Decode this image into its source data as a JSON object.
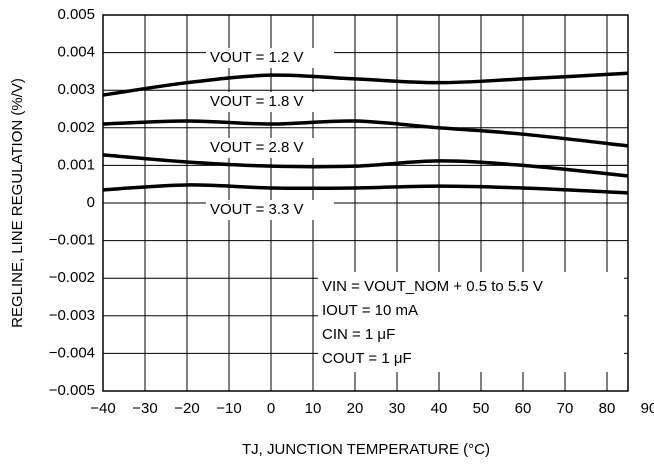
{
  "chart_data": {
    "type": "line",
    "x_label": "TJ, JUNCTION TEMPERATURE (°C)",
    "y_label": "REGLINE, LINE REGULATION (%/V)",
    "x": [
      -40,
      -20,
      0,
      20,
      40,
      60,
      85
    ],
    "series": [
      {
        "name": "VOUT = 1.2 V",
        "color": "#000000",
        "values": [
          0.00287,
          0.0032,
          0.0034,
          0.0033,
          0.0032,
          0.0033,
          0.00345
        ]
      },
      {
        "name": "VOUT = 1.8 V",
        "color": "#000000",
        "values": [
          0.0021,
          0.00218,
          0.0021,
          0.00218,
          0.002,
          0.00183,
          0.00152
        ]
      },
      {
        "name": "VOUT = 2.8 V",
        "color": "#000000",
        "values": [
          0.00128,
          0.00109,
          0.00098,
          0.00098,
          0.00112,
          0.001,
          0.00072
        ]
      },
      {
        "name": "VOUT = 3.3 V",
        "color": "#000000",
        "values": [
          0.00035,
          0.00048,
          0.0004,
          0.0004,
          0.00045,
          0.0004,
          0.00027
        ]
      }
    ],
    "annotations": [
      "VIN = VOUT_NOM + 0.5 to 5.5 V",
      "IOUT = 10 mA",
      "CIN = 1 μF",
      "COUT = 1 μF"
    ],
    "xlim": [
      -40,
      85
    ],
    "xticks": [
      {
        "value": -40,
        "label": "−40"
      },
      {
        "value": -30,
        "label": "−30"
      },
      {
        "value": -20,
        "label": "−20"
      },
      {
        "value": -10,
        "label": "−10"
      },
      0,
      10,
      20,
      30,
      40,
      50,
      60,
      70,
      80,
      90
    ],
    "ylim": [
      -0.005,
      0.005
    ],
    "yticks": [
      {
        "value": -0.005,
        "label": "−0.005"
      },
      {
        "value": -0.004,
        "label": "−0.004"
      },
      {
        "value": -0.003,
        "label": "−0.003"
      },
      {
        "value": -0.002,
        "label": "−0.002"
      },
      {
        "value": -0.001,
        "label": "−0.001"
      },
      0,
      0.001,
      0.002,
      0.003,
      0.004,
      0.005
    ],
    "grid": true
  }
}
